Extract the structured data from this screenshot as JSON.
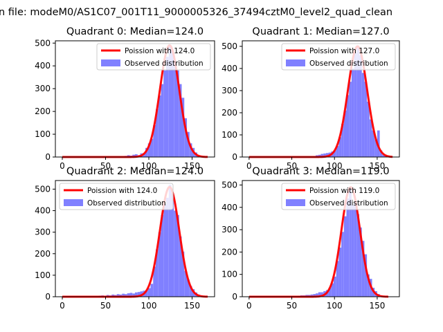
{
  "figure": {
    "suptitle": "n file: modeM0/AS1C07_001T11_9000005326_37494cztM0_level2_quad_clean"
  },
  "colors": {
    "poisson_line": "#ff0000",
    "observed_bars": "#8080ff",
    "axes": "#000000"
  },
  "chart_data": [
    {
      "type": "bar",
      "title": "Quadrant 0: Median=124.0",
      "xlim": [
        -8,
        176
      ],
      "ylim": [
        0,
        510
      ],
      "xticks": [
        0,
        50,
        100,
        150
      ],
      "yticks": [
        0,
        100,
        200,
        300,
        400,
        500
      ],
      "legend_position": "upper right",
      "series": [
        {
          "name": "Poission with 124.0",
          "kind": "line",
          "mean": 124.0,
          "peak": 490,
          "x_range": [
            0,
            168
          ]
        },
        {
          "name": "Observed distribution",
          "kind": "histogram",
          "bin_width": 3,
          "bins": [
            [
              72,
              5
            ],
            [
              75,
              8
            ],
            [
              78,
              6
            ],
            [
              81,
              10
            ],
            [
              84,
              12
            ],
            [
              87,
              8
            ],
            [
              90,
              16
            ],
            [
              93,
              15
            ],
            [
              96,
              40
            ],
            [
              99,
              60
            ],
            [
              102,
              80
            ],
            [
              105,
              140
            ],
            [
              108,
              210
            ],
            [
              111,
              270
            ],
            [
              114,
              320
            ],
            [
              117,
              380
            ],
            [
              120,
              440
            ],
            [
              123,
              490
            ],
            [
              126,
              470
            ],
            [
              129,
              420
            ],
            [
              132,
              380
            ],
            [
              135,
              320
            ],
            [
              138,
              260
            ],
            [
              141,
              170
            ],
            [
              144,
              110
            ],
            [
              147,
              60
            ],
            [
              150,
              40
            ],
            [
              153,
              20
            ],
            [
              156,
              8
            ],
            [
              159,
              4
            ]
          ]
        }
      ]
    },
    {
      "type": "bar",
      "title": "Quadrant 1: Median=127.0",
      "xlim": [
        -8,
        176
      ],
      "ylim": [
        0,
        525
      ],
      "xticks": [
        0,
        50,
        100,
        150
      ],
      "yticks": [
        0,
        100,
        200,
        300,
        400,
        500
      ],
      "legend_position": "upper right",
      "series": [
        {
          "name": "Poission with 127.0",
          "kind": "line",
          "mean": 127.0,
          "peak": 500,
          "x_range": [
            0,
            168
          ]
        },
        {
          "name": "Observed distribution",
          "kind": "histogram",
          "bin_width": 3,
          "bins": [
            [
              75,
              4
            ],
            [
              78,
              8
            ],
            [
              81,
              10
            ],
            [
              84,
              14
            ],
            [
              87,
              16
            ],
            [
              90,
              18
            ],
            [
              93,
              20
            ],
            [
              96,
              25
            ],
            [
              99,
              30
            ],
            [
              102,
              50
            ],
            [
              105,
              90
            ],
            [
              108,
              150
            ],
            [
              111,
              210
            ],
            [
              114,
              280
            ],
            [
              117,
              340
            ],
            [
              120,
              400
            ],
            [
              123,
              470
            ],
            [
              126,
              500
            ],
            [
              129,
              460
            ],
            [
              132,
              380
            ],
            [
              135,
              340
            ],
            [
              138,
              250
            ],
            [
              141,
              170
            ],
            [
              144,
              120
            ],
            [
              147,
              80
            ],
            [
              150,
              120
            ],
            [
              153,
              30
            ],
            [
              156,
              10
            ],
            [
              159,
              3
            ]
          ]
        }
      ]
    },
    {
      "type": "bar",
      "title": "Quadrant 2: Median=124.0",
      "xlim": [
        -8,
        176
      ],
      "ylim": [
        0,
        540
      ],
      "xticks": [
        0,
        50,
        100,
        150
      ],
      "yticks": [
        0,
        100,
        200,
        300,
        400,
        500
      ],
      "legend_position": "upper left",
      "series": [
        {
          "name": "Poission with 124.0",
          "kind": "line",
          "mean": 124.0,
          "peak": 510,
          "x_range": [
            0,
            168
          ]
        },
        {
          "name": "Observed distribution",
          "kind": "histogram",
          "bin_width": 3,
          "bins": [
            [
              42,
              5
            ],
            [
              45,
              6
            ],
            [
              48,
              4
            ],
            [
              51,
              8
            ],
            [
              54,
              6
            ],
            [
              57,
              10
            ],
            [
              60,
              8
            ],
            [
              63,
              12
            ],
            [
              66,
              10
            ],
            [
              69,
              14
            ],
            [
              72,
              12
            ],
            [
              75,
              16
            ],
            [
              78,
              18
            ],
            [
              81,
              15
            ],
            [
              84,
              20
            ],
            [
              87,
              22
            ],
            [
              90,
              25
            ],
            [
              93,
              28
            ],
            [
              96,
              30
            ],
            [
              99,
              40
            ],
            [
              102,
              60
            ],
            [
              105,
              140
            ],
            [
              108,
              220
            ],
            [
              111,
              300
            ],
            [
              114,
              380
            ],
            [
              117,
              430
            ],
            [
              120,
              460
            ],
            [
              123,
              520
            ],
            [
              126,
              480
            ],
            [
              129,
              400
            ],
            [
              132,
              380
            ],
            [
              135,
              280
            ],
            [
              138,
              210
            ],
            [
              141,
              120
            ],
            [
              144,
              80
            ],
            [
              147,
              50
            ],
            [
              150,
              35
            ],
            [
              153,
              20
            ],
            [
              156,
              10
            ],
            [
              159,
              5
            ]
          ]
        }
      ]
    },
    {
      "type": "bar",
      "title": "Quadrant 3: Median=119.0",
      "xlim": [
        -8,
        176
      ],
      "ylim": [
        0,
        520
      ],
      "xticks": [
        0,
        50,
        100,
        150
      ],
      "yticks": [
        0,
        100,
        200,
        300,
        400,
        500
      ],
      "legend_position": "upper right",
      "series": [
        {
          "name": "Poission with 119.0",
          "kind": "line",
          "mean": 119.0,
          "peak": 490,
          "x_range": [
            0,
            163
          ]
        },
        {
          "name": "Observed distribution",
          "kind": "histogram",
          "bin_width": 3,
          "bins": [
            [
              57,
              4
            ],
            [
              60,
              6
            ],
            [
              63,
              6
            ],
            [
              66,
              8
            ],
            [
              69,
              8
            ],
            [
              72,
              10
            ],
            [
              75,
              12
            ],
            [
              78,
              15
            ],
            [
              81,
              20
            ],
            [
              84,
              20
            ],
            [
              87,
              25
            ],
            [
              90,
              30
            ],
            [
              93,
              40
            ],
            [
              96,
              60
            ],
            [
              99,
              90
            ],
            [
              102,
              160
            ],
            [
              105,
              220
            ],
            [
              108,
              290
            ],
            [
              111,
              360
            ],
            [
              114,
              440
            ],
            [
              117,
              490
            ],
            [
              120,
              410
            ],
            [
              123,
              420
            ],
            [
              126,
              370
            ],
            [
              129,
              310
            ],
            [
              132,
              250
            ],
            [
              135,
              190
            ],
            [
              138,
              100
            ],
            [
              141,
              80
            ],
            [
              144,
              40
            ],
            [
              147,
              25
            ],
            [
              150,
              12
            ],
            [
              153,
              6
            ],
            [
              156,
              3
            ]
          ]
        }
      ]
    }
  ]
}
